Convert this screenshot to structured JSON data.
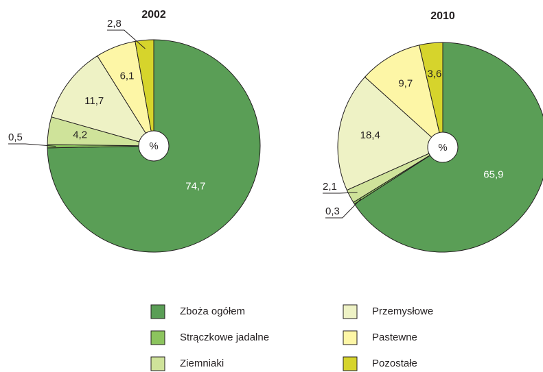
{
  "chart_data": [
    {
      "type": "pie",
      "title": "2002",
      "center_label": "%",
      "categories": [
        "Zboża ogółem",
        "Strączkowe jadalne",
        "Ziemniaki",
        "Przemysłowe",
        "Pastewne",
        "Pozostałe"
      ],
      "values": [
        74.7,
        0.5,
        4.2,
        11.7,
        6.1,
        2.8
      ],
      "value_labels": [
        "74,7",
        "0,5",
        "4,2",
        "11,7",
        "6,1",
        "2,8"
      ],
      "colors": [
        "#5a9e56",
        "#8cc45e",
        "#cfe39a",
        "#eef2c5",
        "#fdf6a6",
        "#d6d42c"
      ]
    },
    {
      "type": "pie",
      "title": "2010",
      "center_label": "%",
      "categories": [
        "Zboża ogółem",
        "Strączkowe jadalne",
        "Ziemniaki",
        "Przemysłowe",
        "Pastewne",
        "Pozostałe"
      ],
      "values": [
        65.9,
        0.3,
        2.1,
        18.4,
        9.7,
        3.6
      ],
      "value_labels": [
        "65,9",
        "0,3",
        "2,1",
        "18,4",
        "9,7",
        "3,6"
      ],
      "colors": [
        "#5a9e56",
        "#8cc45e",
        "#cfe39a",
        "#eef2c5",
        "#fdf6a6",
        "#d6d42c"
      ]
    }
  ]
}
